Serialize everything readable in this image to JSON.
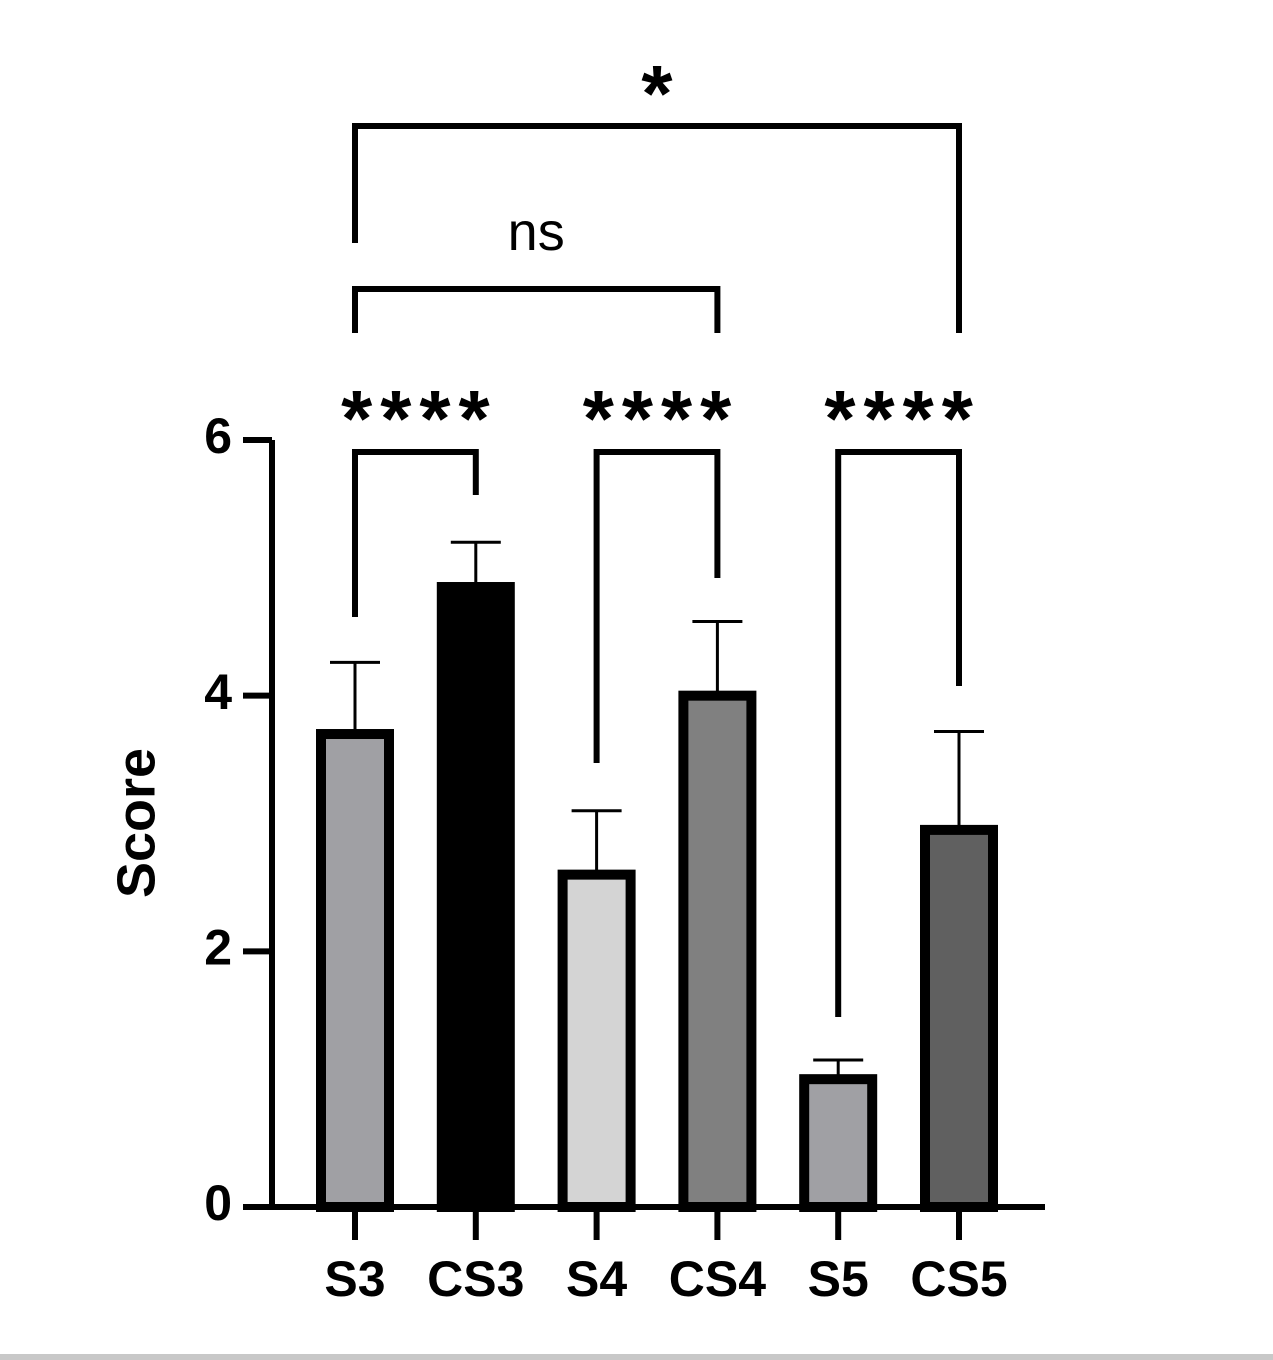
{
  "chart_data": {
    "type": "bar",
    "y_label": "Score",
    "categories": [
      "S3",
      "CS3",
      "S4",
      "CS4",
      "S5",
      "CS5"
    ],
    "values": [
      3.7,
      4.85,
      2.6,
      4.0,
      1.0,
      2.95
    ],
    "errors": [
      0.56,
      0.35,
      0.5,
      0.58,
      0.15,
      0.77
    ],
    "colors": [
      "#a0a0a4",
      "#000000",
      "#d4d4d4",
      "#808080",
      "#a0a0a4",
      "#606060"
    ],
    "ylim": [
      0,
      6
    ],
    "yticks": [
      0,
      2,
      4,
      6
    ],
    "annotations": [
      {
        "label": "****",
        "from": "S3",
        "to": "CS3"
      },
      {
        "label": "****",
        "from": "S4",
        "to": "CS4"
      },
      {
        "label": "****",
        "from": "S5",
        "to": "CS5"
      },
      {
        "label": "ns",
        "from": "S3",
        "to": "CS4"
      },
      {
        "label": "*",
        "from": "S3",
        "to": "CS5"
      }
    ]
  }
}
